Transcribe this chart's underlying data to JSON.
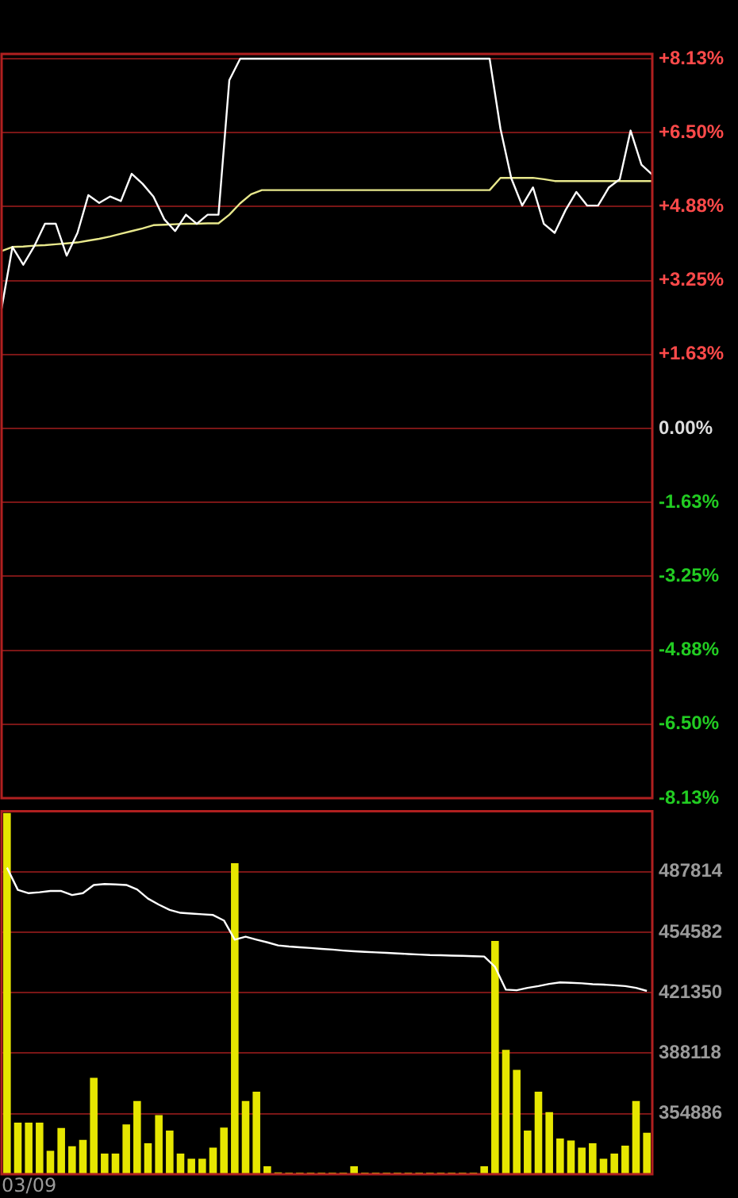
{
  "chart_data": [
    {
      "type": "line",
      "categories": [
        null,
        null,
        null,
        null,
        null,
        null,
        null,
        null,
        null,
        null,
        null,
        null,
        null,
        null,
        null,
        null,
        null,
        null,
        null,
        null,
        null,
        null,
        null,
        null,
        null,
        null,
        null,
        null,
        null,
        null,
        null,
        null,
        null,
        null,
        null,
        null,
        null,
        null,
        null,
        null,
        null,
        null,
        null,
        null,
        null,
        null,
        null,
        null,
        null,
        null,
        null,
        null,
        null,
        null,
        null,
        null,
        null,
        null,
        null,
        null,
        null
      ],
      "ylim": [
        -8.13,
        8.13
      ],
      "yticks": [
        {
          "value": 8.13,
          "label": "+8.13%"
        },
        {
          "value": 6.5,
          "label": "+6.50%"
        },
        {
          "value": 4.88,
          "label": "+4.88%"
        },
        {
          "value": 3.25,
          "label": "+3.25%"
        },
        {
          "value": 1.63,
          "label": "+1.63%"
        },
        {
          "value": 0,
          "label": "0.00%"
        },
        {
          "value": -1.63,
          "label": "-1.63%"
        },
        {
          "value": -3.25,
          "label": "-3.25%"
        },
        {
          "value": -4.88,
          "label": "-4.88%"
        },
        {
          "value": -6.5,
          "label": "-6.50%"
        },
        {
          "value": -8.13,
          "label": "-8.13%"
        }
      ],
      "tick_labels": "y",
      "grid": "y",
      "legend": false,
      "marker": "none",
      "line_style": "solid",
      "series": [
        {
          "color": "#ffffff",
          "values": [
            2.64,
            3.99,
            3.6,
            4.0,
            4.5,
            4.5,
            3.8,
            4.3,
            5.13,
            4.96,
            5.1,
            5.0,
            5.6,
            5.38,
            5.1,
            4.6,
            4.34,
            4.7,
            4.5,
            4.7,
            4.7,
            7.66,
            8.13,
            8.13,
            8.13,
            8.13,
            8.13,
            8.13,
            8.13,
            8.13,
            8.13,
            8.13,
            8.13,
            8.13,
            8.13,
            8.13,
            8.13,
            8.13,
            8.13,
            8.13,
            8.13,
            8.13,
            8.13,
            8.13,
            8.13,
            8.13,
            6.59,
            5.5,
            4.9,
            5.3,
            4.5,
            4.3,
            4.8,
            5.2,
            4.9,
            4.9,
            5.3,
            5.48,
            6.55,
            5.8,
            5.58
          ]
        },
        {
          "color": "#e8e88c",
          "values": [
            3.9,
            3.99,
            4.0,
            4.02,
            4.03,
            4.05,
            4.07,
            4.09,
            4.13,
            4.17,
            4.22,
            4.28,
            4.34,
            4.4,
            4.47,
            4.48,
            4.49,
            4.5,
            4.5,
            4.51,
            4.51,
            4.7,
            4.95,
            5.15,
            5.24,
            5.24,
            5.24,
            5.24,
            5.24,
            5.24,
            5.24,
            5.24,
            5.24,
            5.24,
            5.24,
            5.24,
            5.24,
            5.24,
            5.24,
            5.24,
            5.24,
            5.24,
            5.24,
            5.24,
            5.24,
            5.24,
            5.51,
            5.51,
            5.51,
            5.51,
            5.48,
            5.44,
            5.44,
            5.44,
            5.44,
            5.44,
            5.44,
            5.44,
            5.44,
            5.44,
            5.44
          ]
        }
      ]
    },
    {
      "type": "bar",
      "categories": [
        null,
        null,
        null,
        null,
        null,
        null,
        null,
        null,
        null,
        null,
        null,
        null,
        null,
        null,
        null,
        null,
        null,
        null,
        null,
        null,
        null,
        null,
        null,
        null,
        null,
        null,
        null,
        null,
        null,
        null,
        null,
        null,
        null,
        null,
        null,
        null,
        null,
        null,
        null,
        null,
        null,
        null,
        null,
        null,
        null,
        null,
        null,
        null,
        null,
        null,
        null,
        null,
        null,
        null,
        null,
        null,
        null,
        null,
        null,
        null
      ],
      "ylim": [
        321654,
        521046
      ],
      "yticks": [
        487814,
        454582,
        421350,
        388118,
        354886
      ],
      "tick_labels": "y",
      "grid": "y",
      "legend": false,
      "marker": "none",
      "line_style": "solid",
      "annotations": [
        "03/09"
      ],
      "series": [
        {
          "color": "#e6e600",
          "values": [
            520000,
            350000,
            350000,
            350000,
            334500,
            347000,
            337000,
            340500,
            374600,
            333000,
            333000,
            349000,
            361800,
            338700,
            354100,
            345600,
            333000,
            330200,
            330200,
            336200,
            347300,
            492500,
            361800,
            367000,
            326000,
            322600,
            322500,
            322500,
            322500,
            322500,
            322500,
            322500,
            326000,
            322500,
            322500,
            322500,
            322500,
            322500,
            322500,
            322500,
            322500,
            322500,
            322500,
            322500,
            326000,
            449800,
            390000,
            378900,
            345600,
            367000,
            355800,
            341300,
            340200,
            336200,
            338700,
            330200,
            333000,
            337300,
            361800,
            344400
          ]
        },
        {
          "type": "line",
          "color": "#ffffff",
          "values": [
            490000,
            477800,
            476000,
            476500,
            477200,
            477200,
            475000,
            476000,
            480500,
            481000,
            480800,
            480500,
            478000,
            473000,
            469700,
            466800,
            465200,
            464800,
            464400,
            464000,
            461000,
            450500,
            452100,
            450500,
            449000,
            447300,
            446700,
            446300,
            445900,
            445400,
            445000,
            444500,
            444100,
            443800,
            443500,
            443200,
            442900,
            442600,
            442300,
            442000,
            441900,
            441700,
            441600,
            441400,
            441200,
            435500,
            423000,
            422700,
            424000,
            425000,
            426200,
            427000,
            426800,
            426500,
            426000,
            425800,
            425400,
            425000,
            424000,
            422300
          ]
        }
      ]
    }
  ]
}
